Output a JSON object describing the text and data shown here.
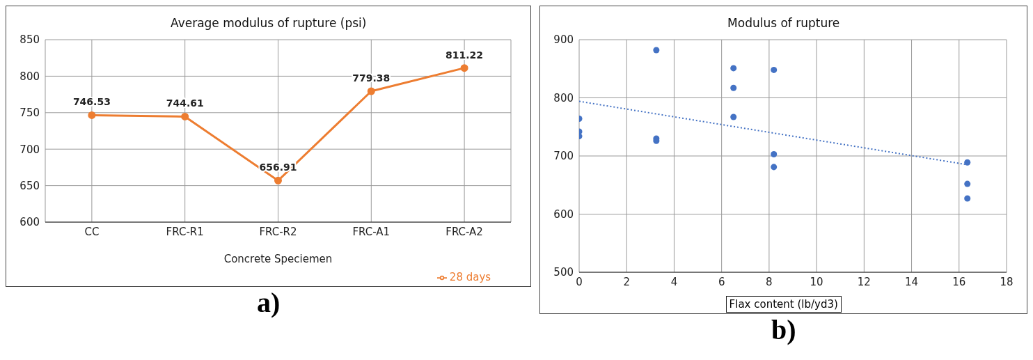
{
  "chart_data": [
    {
      "type": "line",
      "title": "Average modulus of rupture (psi)",
      "xlabel": "Concrete Speciemen",
      "categories": [
        "CC",
        "FRC-R1",
        "FRC-R2",
        "FRC-A1",
        "FRC-A2"
      ],
      "series": [
        {
          "name": "28 days",
          "color": "#ed7d31",
          "values": [
            746.53,
            744.61,
            656.91,
            779.38,
            811.22
          ]
        }
      ],
      "ylim": [
        600,
        850
      ],
      "yticks": [
        600,
        650,
        700,
        750,
        800,
        850
      ],
      "grid": true,
      "legend": "bottom",
      "marker": "circle",
      "data_labels": true,
      "annotations": [
        "a)"
      ]
    },
    {
      "type": "scatter",
      "title": "Modulus of rupture",
      "xlabel": "Flax content (lb/yd3)",
      "x": [
        0,
        0,
        0,
        3.25,
        3.25,
        3.25,
        6.5,
        6.5,
        6.5,
        8.2,
        8.2,
        8.2,
        16.35,
        16.35,
        16.35
      ],
      "series": [
        {
          "color": "#4472c4",
          "values": [
            764,
            742,
            734,
            882,
            730,
            726,
            851,
            817,
            767,
            848,
            703,
            681,
            689,
            652,
            627
          ]
        },
        {
          "type": "line",
          "color": "#4472c4",
          "x": [
            0,
            16.35
          ],
          "values": [
            794,
            685
          ],
          "line_style": "dotted",
          "marker": "none"
        }
      ],
      "xlim": [
        0,
        18
      ],
      "xticks": [
        0,
        2,
        4,
        6,
        8,
        10,
        12,
        14,
        16,
        18
      ],
      "ylim": [
        500,
        900
      ],
      "yticks": [
        500,
        600,
        700,
        800,
        900
      ],
      "grid": true,
      "marker": "circle",
      "annotations": [
        "b)"
      ]
    }
  ]
}
